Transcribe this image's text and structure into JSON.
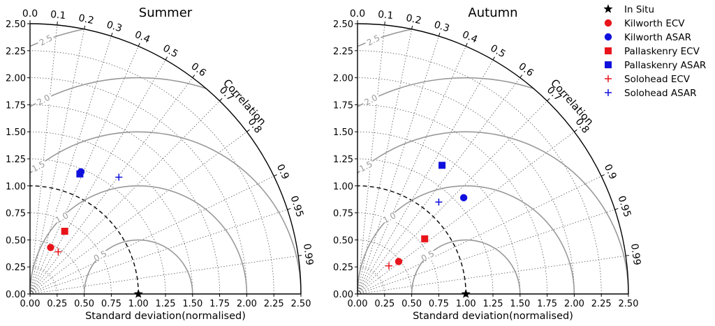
{
  "chart_data": [
    {
      "type": "scatter",
      "subtype": "taylor_diagram",
      "title": "Summer",
      "xlabel": "Standard deviation(normalised)",
      "ylabel": "",
      "angle_label": "Correlation",
      "xlim": [
        0,
        2.5
      ],
      "ylim": [
        0,
        2.5
      ],
      "x_ticks": [
        "0.00",
        "0.25",
        "0.50",
        "0.75",
        "1.00",
        "1.25",
        "1.50",
        "1.75",
        "2.00",
        "2.25",
        "2.50"
      ],
      "y_ticks": [
        "0.00",
        "0.25",
        "0.50",
        "0.75",
        "1.00",
        "1.25",
        "1.50",
        "1.75",
        "2.00",
        "2.25",
        "2.50"
      ],
      "correlation_ticks": [
        "0.0",
        "0.1",
        "0.2",
        "0.3",
        "0.4",
        "0.5",
        "0.6",
        "0.7",
        "0.8",
        "0.9",
        "0.95",
        "0.99"
      ],
      "rms_contours": [
        "0.5",
        "1.0",
        "1.5",
        "2.0",
        "2.5"
      ],
      "grid": true,
      "series": [
        {
          "name": "In Situ",
          "x": 1.0,
          "y": 0.0
        },
        {
          "name": "Kilworth ECV",
          "x": 0.19,
          "y": 0.43
        },
        {
          "name": "Kilworth ASAR",
          "x": 0.47,
          "y": 1.13
        },
        {
          "name": "Pallaskenry ECV",
          "x": 0.32,
          "y": 0.58
        },
        {
          "name": "Pallaskenry ASAR",
          "x": 0.46,
          "y": 1.11
        },
        {
          "name": "Solohead ECV",
          "x": 0.26,
          "y": 0.39
        },
        {
          "name": "Solohead ASAR",
          "x": 0.82,
          "y": 1.08
        }
      ]
    },
    {
      "type": "scatter",
      "subtype": "taylor_diagram",
      "title": "Autumn",
      "xlabel": "Standard deviation(normalised)",
      "ylabel": "",
      "angle_label": "Correlation",
      "xlim": [
        0,
        2.5
      ],
      "ylim": [
        0,
        2.5
      ],
      "x_ticks": [
        "0.00",
        "0.25",
        "0.50",
        "0.75",
        "1.00",
        "1.25",
        "1.50",
        "1.75",
        "2.00",
        "2.25",
        "2.50"
      ],
      "y_ticks": [
        "0.00",
        "0.25",
        "0.50",
        "0.75",
        "1.00",
        "1.25",
        "1.50",
        "1.75",
        "2.00",
        "2.25",
        "2.50"
      ],
      "correlation_ticks": [
        "0.0",
        "0.1",
        "0.2",
        "0.3",
        "0.4",
        "0.5",
        "0.6",
        "0.7",
        "0.8",
        "0.9",
        "0.95",
        "0.99"
      ],
      "rms_contours": [
        "0.5",
        "1.0",
        "1.5",
        "2.0",
        "2.5"
      ],
      "grid": true,
      "series": [
        {
          "name": "In Situ",
          "x": 1.0,
          "y": 0.0
        },
        {
          "name": "Kilworth ECV",
          "x": 0.38,
          "y": 0.3
        },
        {
          "name": "Kilworth ASAR",
          "x": 0.98,
          "y": 0.89
        },
        {
          "name": "Pallaskenry ECV",
          "x": 0.62,
          "y": 0.51
        },
        {
          "name": "Pallaskenry ASAR",
          "x": 0.78,
          "y": 1.19
        },
        {
          "name": "Solohead ECV",
          "x": 0.29,
          "y": 0.26
        },
        {
          "name": "Solohead ASAR",
          "x": 0.75,
          "y": 0.85
        }
      ]
    }
  ],
  "legend": {
    "placement": "right",
    "entries": [
      {
        "label": "In Situ",
        "marker": "star",
        "color": "#000000"
      },
      {
        "label": "Kilworth ECV",
        "marker": "circle",
        "color": "#e8141b"
      },
      {
        "label": "Kilworth ASAR",
        "marker": "circle",
        "color": "#1010dd"
      },
      {
        "label": "Pallaskenry ECV",
        "marker": "square",
        "color": "#e8141b"
      },
      {
        "label": "Pallaskenry ASAR",
        "marker": "square",
        "color": "#1010dd"
      },
      {
        "label": "Solohead ECV",
        "marker": "plus",
        "color": "#e8141b"
      },
      {
        "label": "Solohead ASAR",
        "marker": "plus",
        "color": "#1010dd"
      }
    ]
  },
  "colors": {
    "ecv": "#e8141b",
    "asar": "#1010dd",
    "reference": "#000000",
    "rms_contour": "#999999",
    "grid": "#555555"
  }
}
